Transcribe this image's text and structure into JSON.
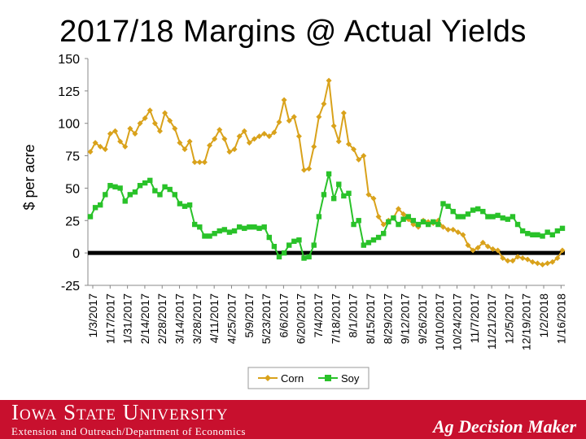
{
  "title": "2017/18 Margins @ Actual Yields",
  "footer": {
    "university": "Iowa State University",
    "department": "Extension and Outreach/Department of Economics",
    "brand": "Ag Decision Maker",
    "background_color": "#c8102e"
  },
  "chart_data": {
    "type": "line",
    "ylabel": "$ per acre",
    "ylim": [
      -25,
      150
    ],
    "yticks": [
      -25,
      0,
      25,
      50,
      75,
      100,
      125,
      150
    ],
    "zero_line": true,
    "x_tick_labels": [
      "1/3/2017",
      "1/17/2017",
      "1/31/2017",
      "2/14/2017",
      "2/28/2017",
      "3/14/2017",
      "3/28/2017",
      "4/11/2017",
      "4/25/2017",
      "5/9/2017",
      "5/23/2017",
      "6/6/2017",
      "6/20/2017",
      "7/4/2017",
      "7/18/2017",
      "8/1/2017",
      "8/15/2017",
      "8/29/2017",
      "9/12/2017",
      "9/26/2017",
      "10/10/2017",
      "10/24/2017",
      "11/7/2017",
      "11/21/2017",
      "12/5/2017",
      "12/19/2017",
      "1/2/2018",
      "1/16/2018"
    ],
    "legend_position": "bottom-right",
    "series": [
      {
        "name": "Corn",
        "color": "#d9a21b",
        "marker": "diamond",
        "values": [
          78,
          85,
          82,
          80,
          92,
          94,
          86,
          82,
          96,
          92,
          100,
          104,
          110,
          100,
          94,
          108,
          102,
          96,
          85,
          80,
          86,
          70,
          70,
          70,
          83,
          88,
          95,
          88,
          78,
          80,
          90,
          94,
          85,
          88,
          90,
          92,
          90,
          93,
          101,
          118,
          102,
          105,
          90,
          64,
          65,
          82,
          105,
          115,
          133,
          98,
          86,
          108,
          84,
          80,
          72,
          75,
          45,
          42,
          28,
          22,
          25,
          27,
          34,
          30,
          26,
          22,
          20,
          25,
          24,
          23,
          25,
          20,
          18,
          18,
          16,
          14,
          6,
          2,
          4,
          8,
          5,
          3,
          2,
          -4,
          -6,
          -6,
          -3,
          -4,
          -5,
          -7,
          -8,
          -9,
          -8,
          -7,
          -4,
          2
        ]
      },
      {
        "name": "Soy",
        "color": "#29c229",
        "marker": "square",
        "values": [
          28,
          35,
          37,
          45,
          52,
          51,
          50,
          40,
          45,
          47,
          52,
          54,
          56,
          48,
          45,
          51,
          49,
          45,
          38,
          36,
          37,
          22,
          20,
          13,
          13,
          15,
          17,
          18,
          16,
          17,
          20,
          19,
          20,
          20,
          19,
          20,
          12,
          5,
          -3,
          0,
          6,
          9,
          10,
          -4,
          -3,
          6,
          28,
          45,
          61,
          42,
          53,
          44,
          46,
          22,
          25,
          6,
          8,
          10,
          12,
          15,
          24,
          27,
          22,
          26,
          28,
          25,
          22,
          24,
          22,
          24,
          22,
          38,
          36,
          32,
          28,
          28,
          30,
          33,
          34,
          32,
          28,
          28,
          29,
          27,
          26,
          28,
          22,
          17,
          15,
          14,
          14,
          13,
          16,
          14,
          17,
          19
        ]
      }
    ]
  }
}
